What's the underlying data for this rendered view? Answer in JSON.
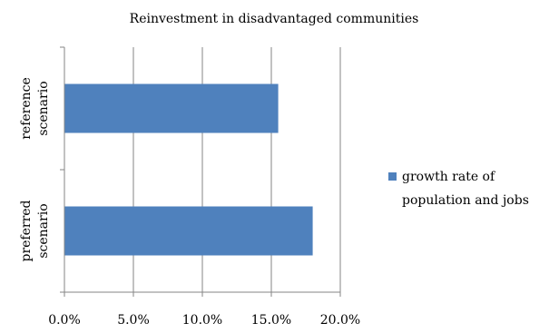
{
  "chart_data": {
    "type": "bar",
    "orientation": "horizontal",
    "title": "Reinvestment in disadvantaged communities",
    "categories": [
      [
        "reference",
        "scenario"
      ],
      [
        "preferred",
        "scenario"
      ]
    ],
    "series": [
      {
        "name": [
          "growth rate of",
          "population and jobs"
        ],
        "values": [
          0.155,
          0.18
        ],
        "color": "#4f81bd"
      }
    ],
    "xlim": [
      0,
      0.2
    ],
    "xticks": [
      0,
      0.05,
      0.1,
      0.15,
      0.2
    ],
    "xtick_labels": [
      "0.0%",
      "5.0%",
      "10.0%",
      "15.0%",
      "20.0%"
    ],
    "grid": "vertical",
    "legend_position": "right",
    "colors": {
      "bar": "#4f81bd",
      "grid": "#868686",
      "axis": "#868686"
    }
  }
}
